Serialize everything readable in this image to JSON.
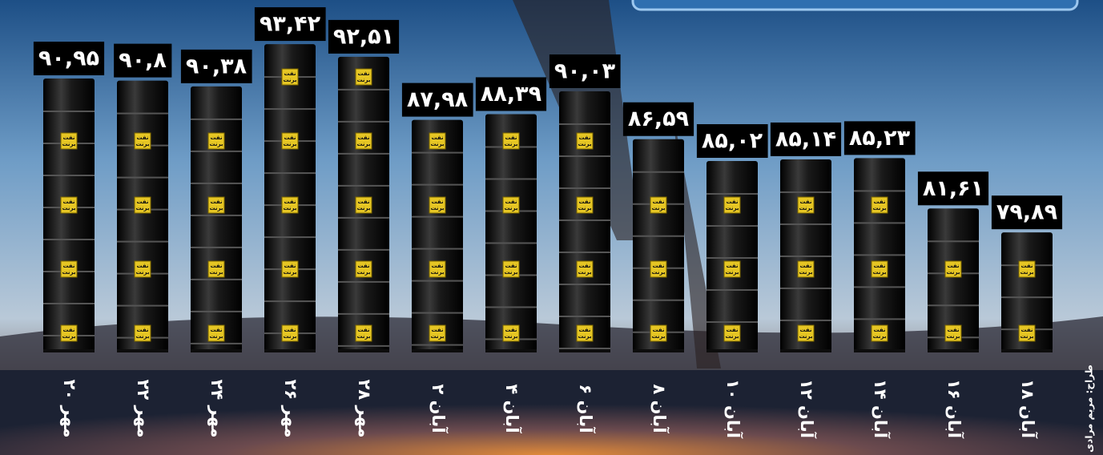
{
  "chart_data": {
    "type": "bar",
    "categories": [
      "مهر ۲۰",
      "مهر ۲۲",
      "مهر ۲۴",
      "مهر ۲۶",
      "مهر ۲۸",
      "آبان ۲",
      "آبان ۴",
      "آبان ۶",
      "آبان ۸",
      "آبان ۱۰",
      "آبان ۱۲",
      "آبان ۱۴",
      "آبان ۱۶",
      "آبان ۱۸"
    ],
    "values": [
      90.95,
      90.8,
      90.38,
      93.42,
      92.51,
      87.98,
      88.39,
      90.03,
      86.59,
      85.02,
      85.14,
      85.23,
      81.61,
      79.89
    ],
    "value_labels": [
      "۹۰,۹۵",
      "۹۰,۸",
      "۹۰,۳۸",
      "۹۳,۴۲",
      "۹۲,۵۱",
      "۸۷,۹۸",
      "۸۸,۳۹",
      "۹۰,۰۳",
      "۸۶,۵۹",
      "۸۵,۰۲",
      "۸۵,۱۴",
      "۸۵,۲۳",
      "۸۱,۶۱",
      "۷۹,۸۹"
    ],
    "barrel_label": [
      "نفت",
      "برنت"
    ],
    "credit": "طراح: مریم مرادی",
    "color": "#0d0d0d",
    "ylim": [
      70,
      94
    ]
  }
}
